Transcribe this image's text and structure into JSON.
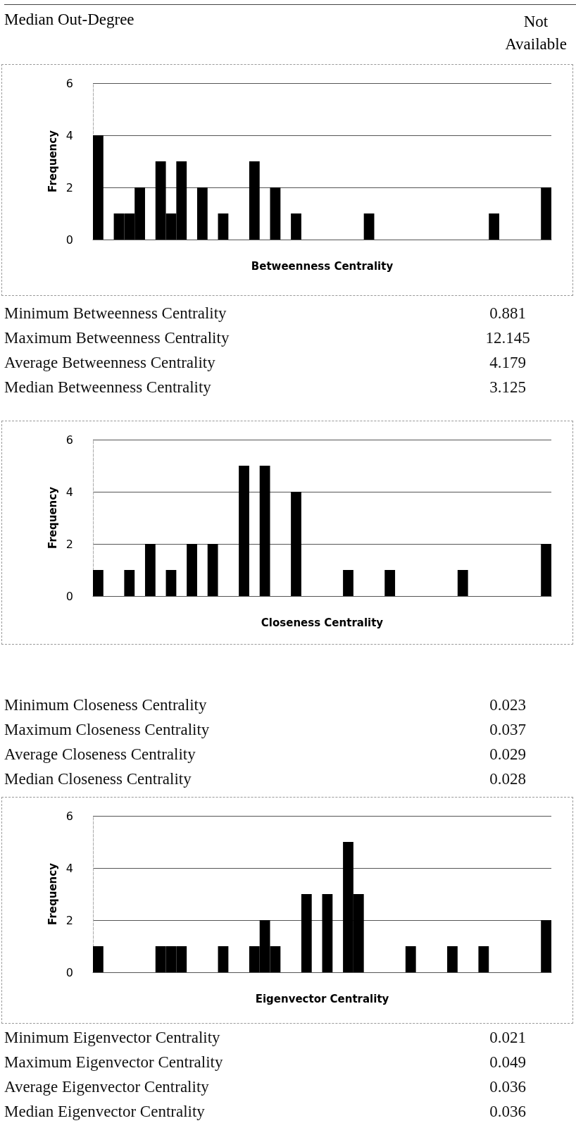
{
  "chart_data": [
    {
      "type": "other",
      "annotations": [
        "Median Out-Degree",
        "Not Available"
      ]
    },
    {
      "type": "bar",
      "xlabel": "Betweenness Centrality",
      "ylabel": "Frequency",
      "color": "#000000",
      "ylim": [
        0,
        6
      ],
      "yticks": [
        0,
        2,
        4,
        6
      ],
      "grid": "y",
      "categories": [
        null,
        null,
        null,
        null,
        null,
        null,
        null,
        null,
        null,
        null,
        null,
        null,
        null,
        null,
        null,
        null,
        null,
        null,
        null,
        null,
        null,
        null,
        null,
        null,
        null,
        null,
        null,
        null,
        null,
        null,
        null,
        null,
        null,
        null,
        null,
        null,
        null,
        null,
        null,
        null,
        null,
        null,
        null,
        null
      ],
      "values": [
        4,
        0,
        1,
        1,
        2,
        0,
        3,
        1,
        3,
        0,
        2,
        0,
        1,
        0,
        0,
        3,
        0,
        2,
        0,
        1,
        0,
        0,
        0,
        0,
        0,
        0,
        1,
        0,
        0,
        0,
        0,
        0,
        0,
        0,
        0,
        0,
        0,
        0,
        1,
        0,
        0,
        0,
        0,
        2
      ],
      "annotations": [
        "Minimum Betweenness Centrality",
        "0.881",
        "Maximum Betweenness Centrality",
        "12.145",
        "Average Betweenness Centrality",
        "4.179",
        "Median Betweenness Centrality",
        "3.125"
      ]
    },
    {
      "type": "bar",
      "xlabel": "Closeness Centrality",
      "ylabel": "Frequency",
      "color": "#000000",
      "ylim": [
        0,
        6
      ],
      "yticks": [
        0,
        2,
        4,
        6
      ],
      "grid": "y",
      "categories": [
        null,
        null,
        null,
        null,
        null,
        null,
        null,
        null,
        null,
        null,
        null,
        null,
        null,
        null,
        null,
        null,
        null,
        null,
        null,
        null,
        null,
        null,
        null,
        null,
        null,
        null,
        null,
        null,
        null,
        null,
        null,
        null,
        null,
        null,
        null,
        null,
        null,
        null,
        null,
        null,
        null,
        null,
        null,
        null
      ],
      "values": [
        1,
        0,
        0,
        1,
        0,
        2,
        0,
        1,
        0,
        2,
        0,
        2,
        0,
        0,
        5,
        0,
        5,
        0,
        0,
        4,
        0,
        0,
        0,
        0,
        1,
        0,
        0,
        0,
        1,
        0,
        0,
        0,
        0,
        0,
        0,
        1,
        0,
        0,
        0,
        0,
        0,
        0,
        0,
        2
      ],
      "annotations": [
        "Minimum Closeness Centrality",
        "0.023",
        "Maximum Closeness Centrality",
        "0.037",
        "Average Closeness Centrality",
        "0.029",
        "Median Closeness Centrality",
        "0.028"
      ]
    },
    {
      "type": "bar",
      "xlabel": "Eigenvector Centrality",
      "ylabel": "Frequency",
      "color": "#000000",
      "ylim": [
        0,
        6
      ],
      "yticks": [
        0,
        2,
        4,
        6
      ],
      "grid": "y",
      "categories": [
        null,
        null,
        null,
        null,
        null,
        null,
        null,
        null,
        null,
        null,
        null,
        null,
        null,
        null,
        null,
        null,
        null,
        null,
        null,
        null,
        null,
        null,
        null,
        null,
        null,
        null,
        null,
        null,
        null,
        null,
        null,
        null,
        null,
        null,
        null,
        null,
        null,
        null,
        null,
        null,
        null,
        null,
        null,
        null
      ],
      "values": [
        1,
        0,
        0,
        0,
        0,
        0,
        1,
        1,
        1,
        0,
        0,
        0,
        1,
        0,
        0,
        1,
        2,
        1,
        0,
        0,
        3,
        0,
        3,
        0,
        5,
        3,
        0,
        0,
        0,
        0,
        1,
        0,
        0,
        0,
        1,
        0,
        0,
        1,
        0,
        0,
        0,
        0,
        0,
        2
      ],
      "annotations": [
        "Minimum Eigenvector Centrality",
        "0.021",
        "Maximum Eigenvector Centrality",
        "0.049",
        "Average Eigenvector Centrality",
        "0.036",
        "Median Eigenvector Centrality",
        "0.036"
      ]
    }
  ]
}
